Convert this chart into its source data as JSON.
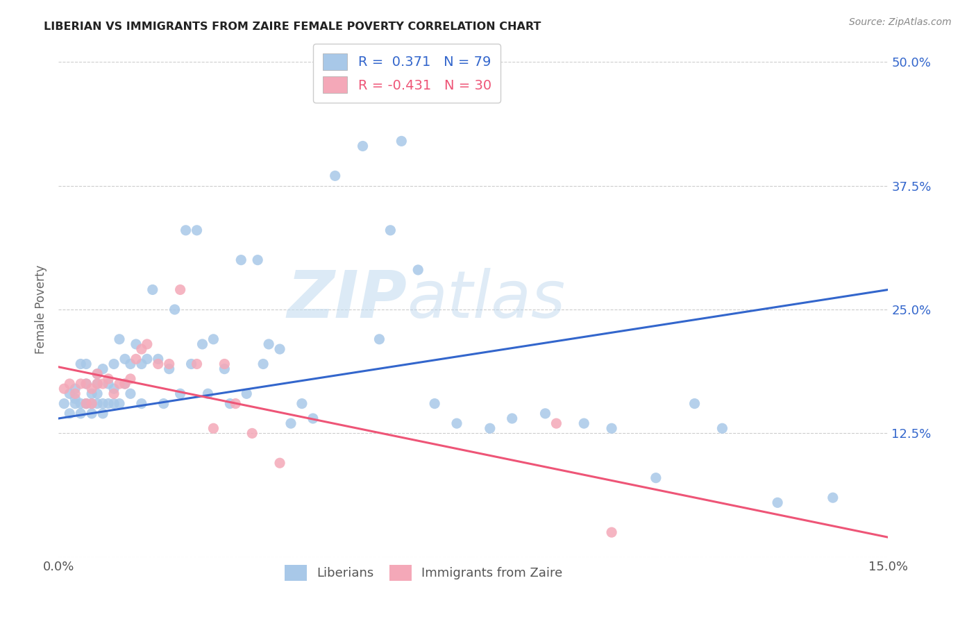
{
  "title": "LIBERIAN VS IMMIGRANTS FROM ZAIRE FEMALE POVERTY CORRELATION CHART",
  "source": "Source: ZipAtlas.com",
  "ylabel": "Female Poverty",
  "legend_label1": "Liberians",
  "legend_label2": "Immigrants from Zaire",
  "R1": 0.371,
  "N1": 79,
  "R2": -0.431,
  "N2": 30,
  "xmin": 0.0,
  "xmax": 0.15,
  "ymin": 0.0,
  "ymax": 0.5,
  "yticks": [
    0.0,
    0.125,
    0.25,
    0.375,
    0.5
  ],
  "ytick_labels": [
    "",
    "12.5%",
    "25.0%",
    "37.5%",
    "50.0%"
  ],
  "color_blue": "#a8c8e8",
  "color_pink": "#f4a8b8",
  "line_blue": "#3366cc",
  "line_pink": "#ee5577",
  "bg_color": "#ffffff",
  "watermark_zip": "ZIP",
  "watermark_atlas": "atlas",
  "blue_scatter_x": [
    0.001,
    0.002,
    0.002,
    0.003,
    0.003,
    0.003,
    0.004,
    0.004,
    0.004,
    0.005,
    0.005,
    0.005,
    0.005,
    0.006,
    0.006,
    0.006,
    0.007,
    0.007,
    0.007,
    0.007,
    0.008,
    0.008,
    0.008,
    0.009,
    0.009,
    0.01,
    0.01,
    0.01,
    0.011,
    0.011,
    0.012,
    0.012,
    0.013,
    0.013,
    0.014,
    0.015,
    0.015,
    0.016,
    0.017,
    0.018,
    0.019,
    0.02,
    0.021,
    0.022,
    0.023,
    0.024,
    0.025,
    0.026,
    0.027,
    0.028,
    0.03,
    0.031,
    0.033,
    0.034,
    0.036,
    0.037,
    0.038,
    0.04,
    0.042,
    0.044,
    0.046,
    0.05,
    0.055,
    0.058,
    0.06,
    0.062,
    0.065,
    0.068,
    0.072,
    0.078,
    0.082,
    0.088,
    0.095,
    0.1,
    0.108,
    0.115,
    0.12,
    0.13,
    0.14
  ],
  "blue_scatter_y": [
    0.155,
    0.145,
    0.165,
    0.155,
    0.16,
    0.17,
    0.145,
    0.155,
    0.195,
    0.155,
    0.155,
    0.175,
    0.195,
    0.145,
    0.155,
    0.165,
    0.155,
    0.165,
    0.175,
    0.185,
    0.145,
    0.155,
    0.19,
    0.155,
    0.175,
    0.155,
    0.17,
    0.195,
    0.155,
    0.22,
    0.175,
    0.2,
    0.165,
    0.195,
    0.215,
    0.155,
    0.195,
    0.2,
    0.27,
    0.2,
    0.155,
    0.19,
    0.25,
    0.165,
    0.33,
    0.195,
    0.33,
    0.215,
    0.165,
    0.22,
    0.19,
    0.155,
    0.3,
    0.165,
    0.3,
    0.195,
    0.215,
    0.21,
    0.135,
    0.155,
    0.14,
    0.385,
    0.415,
    0.22,
    0.33,
    0.42,
    0.29,
    0.155,
    0.135,
    0.13,
    0.14,
    0.145,
    0.135,
    0.13,
    0.08,
    0.155,
    0.13,
    0.055,
    0.06
  ],
  "pink_scatter_x": [
    0.001,
    0.002,
    0.003,
    0.004,
    0.005,
    0.005,
    0.006,
    0.006,
    0.007,
    0.007,
    0.008,
    0.009,
    0.01,
    0.011,
    0.012,
    0.013,
    0.014,
    0.015,
    0.016,
    0.018,
    0.02,
    0.022,
    0.025,
    0.028,
    0.03,
    0.032,
    0.035,
    0.04,
    0.09,
    0.1
  ],
  "pink_scatter_y": [
    0.17,
    0.175,
    0.165,
    0.175,
    0.155,
    0.175,
    0.155,
    0.17,
    0.175,
    0.185,
    0.175,
    0.18,
    0.165,
    0.175,
    0.175,
    0.18,
    0.2,
    0.21,
    0.215,
    0.195,
    0.195,
    0.27,
    0.195,
    0.13,
    0.195,
    0.155,
    0.125,
    0.095,
    0.135,
    0.025
  ],
  "blue_line_x": [
    0.0,
    0.15
  ],
  "blue_line_y": [
    0.14,
    0.27
  ],
  "pink_line_x": [
    0.0,
    0.15
  ],
  "pink_line_y": [
    0.192,
    0.02
  ]
}
